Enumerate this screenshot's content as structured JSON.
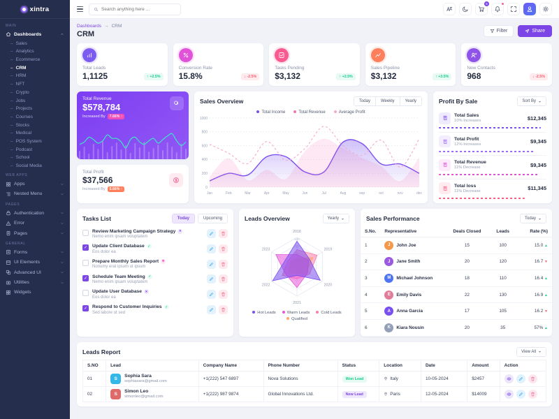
{
  "brand": {
    "name": "xintra"
  },
  "topbar": {
    "search_placeholder": "Search anything here ...",
    "icons": [
      "translate-icon",
      "moon-icon",
      "cart-icon",
      "bell-icon",
      "fullscreen-icon",
      "avatar",
      "gear-icon"
    ],
    "cart_badge": "5"
  },
  "sidebar": {
    "sections": [
      {
        "label": "Main",
        "items": [
          {
            "label": "Dashboards",
            "icon": "home-icon",
            "chevron": "up",
            "active": true
          }
        ]
      },
      {
        "label": "Web Apps",
        "items": [
          {
            "label": "Apps",
            "icon": "apps-icon",
            "chevron": "down"
          },
          {
            "label": "Nested Menu",
            "icon": "nested-menu-icon",
            "chevron": "down"
          }
        ]
      },
      {
        "label": "Pages",
        "items": [
          {
            "label": "Authentication",
            "icon": "lock-icon",
            "chevron": "down"
          },
          {
            "label": "Error",
            "icon": "warning-icon",
            "chevron": "down"
          },
          {
            "label": "Pages",
            "icon": "pages-icon",
            "chevron": "down"
          }
        ]
      },
      {
        "label": "General",
        "items": [
          {
            "label": "Forms",
            "icon": "forms-icon",
            "chevron": "down"
          },
          {
            "label": "UI Elements",
            "icon": "ui-elements-icon",
            "chevron": "down"
          },
          {
            "label": "Advanced UI",
            "icon": "advanced-ui-icon",
            "chevron": "down"
          },
          {
            "label": "Utilities",
            "icon": "utilities-icon",
            "chevron": "down"
          },
          {
            "label": "Widgets",
            "icon": "widgets-icon"
          }
        ]
      }
    ],
    "dashboard_children": [
      "Sales",
      "Analytics",
      "Ecommerce",
      "CRM",
      "HRM",
      "NFT",
      "Crypto",
      "Jobs",
      "Projects",
      "Courses",
      "Stocks",
      "Medical",
      "POS System",
      "Podcast",
      "School",
      "Social Media"
    ],
    "active_child": "CRM"
  },
  "breadcrumb": {
    "parent": "Dashboards",
    "separator": "→",
    "current": "CRM"
  },
  "page": {
    "title": "CRM",
    "filter_label": "Filter",
    "share_label": "Share"
  },
  "stats": [
    {
      "label": "Total Leads",
      "value": "1,1125",
      "delta": "+2.5%",
      "dir": "up",
      "icon": "leads-icon",
      "color": "#7c5cf0"
    },
    {
      "label": "Conversion Rate",
      "value": "15.8%",
      "delta": "-2.5%",
      "dir": "down",
      "icon": "percent-icon",
      "color": "#e052d8"
    },
    {
      "label": "Tasks Pending",
      "value": "$3,132",
      "delta": "+2.5%",
      "dir": "up",
      "icon": "task-icon",
      "color": "#fa5a8f"
    },
    {
      "label": "Sales Pipeline",
      "value": "$3,132",
      "delta": "+3.5%",
      "dir": "up",
      "icon": "pipeline-icon",
      "color": "#fd7f5b"
    },
    {
      "label": "New Contacts",
      "value": "968",
      "delta": "-2.5%",
      "dir": "down",
      "icon": "contact-icon",
      "color": "#8e54e9"
    }
  ],
  "revenue_card": {
    "label": "Total Revenue",
    "value": "$578,784",
    "increase_label": "Increased By",
    "badge": "7.66% ↑"
  },
  "profit_card": {
    "label": "Total Profit",
    "value": "$37,566",
    "increase_label": "Increased By",
    "badge": "5.66% ↑"
  },
  "sales_overview": {
    "title": "Sales Overview",
    "buttons": [
      "Today",
      "Weekly",
      "Yearly"
    ]
  },
  "profit_by_sale": {
    "title": "Profit By Sale",
    "sort_label": "Sort By",
    "items": [
      {
        "label": "Total Sales",
        "sub": "10% Increases",
        "value": "$12,345",
        "color": "#7a4ff0",
        "progress": 95
      },
      {
        "label": "Total Profit",
        "sub": "12% Increases",
        "value": "$9,345",
        "color": "#9e6bfa",
        "progress": 88
      },
      {
        "label": "Total Revenue",
        "sub": "11% Decrease",
        "value": "$9,345",
        "color": "#e052d8",
        "progress": 92
      },
      {
        "label": "Total loss",
        "sub": "11% Decrease",
        "value": "$11,345",
        "color": "#fb5d80",
        "progress": 80
      }
    ]
  },
  "tasks": {
    "title": "Tasks List",
    "tabs": [
      "Today",
      "Upcoming"
    ],
    "active_tab": "Today",
    "items": [
      {
        "title": "Review Marketing Campaign Strategy",
        "sub": "Nemo enim ipsam voluptatem",
        "checked": false,
        "tag": "purple"
      },
      {
        "title": "Update Client Database",
        "sub": "Eos dolor ea",
        "checked": true,
        "tag": "green"
      },
      {
        "title": "Prepare Monthly Sales Report",
        "sub": "Nonumy erat ipsum ut ipsum",
        "checked": false,
        "tag": "pink"
      },
      {
        "title": "Schedule Team Meeting",
        "sub": "Nemo enim ipsam voluptatem",
        "checked": true,
        "tag": "green"
      },
      {
        "title": "Update User Database",
        "sub": "Eos dolor ea",
        "checked": false,
        "tag": "purple"
      },
      {
        "title": "Respond to Customer Inquiries",
        "sub": "Sed labore ut sed",
        "checked": true,
        "tag": "green"
      }
    ]
  },
  "leads_overview": {
    "title": "Leads Overview",
    "period": "Yearly"
  },
  "sales_performance": {
    "title": "Sales Performance",
    "period": "Today",
    "columns": [
      "S.No.",
      "Representative",
      "Deals Closed",
      "Leads",
      "Rate (%)"
    ],
    "rows": [
      {
        "sno": "1",
        "name": "John Joe",
        "deals": "15",
        "leads": "100",
        "rate": "15.0",
        "dir": "up"
      },
      {
        "sno": "2",
        "name": "Jane Smith",
        "deals": "20",
        "leads": "120",
        "rate": "16.7",
        "dir": "down"
      },
      {
        "sno": "3",
        "name": "Michael Johnson",
        "deals": "18",
        "leads": "110",
        "rate": "16.4",
        "dir": "up"
      },
      {
        "sno": "4",
        "name": "Emily Davis",
        "deals": "22",
        "leads": "130",
        "rate": "16.9",
        "dir": "up"
      },
      {
        "sno": "5",
        "name": "Anna Garcia",
        "deals": "17",
        "leads": "105",
        "rate": "16.2",
        "dir": "down"
      },
      {
        "sno": "6",
        "name": "Kiara Nousin",
        "deals": "20",
        "leads": "35",
        "rate": "57%",
        "dir": "up"
      }
    ]
  },
  "leads_report": {
    "title": "Leads Report",
    "view_all": "View All",
    "columns": [
      "S.NO",
      "Lead",
      "Company Name",
      "Phone Number",
      "Status",
      "Location",
      "Date",
      "Amount",
      "Action"
    ],
    "rows": [
      {
        "sno": "01",
        "name": "Sophia Sara",
        "email": "sophiasara@gmail.com",
        "company_name_cell": "+1(222) 547 6897",
        "phone_number_cell": "Nova Solutions",
        "status": "Won Lead",
        "status_type": "success",
        "location": "Italy",
        "date": "10-05-2024",
        "amount": "$2457"
      },
      {
        "sno": "02",
        "name": "Simon Leo",
        "email": "simonleo@gmail.com",
        "company_name_cell": "+1(222) 987 9874",
        "phone_number_cell": "Global Innovations Ltd.",
        "status": "New Lead",
        "status_type": "purple",
        "location": "Paris",
        "date": "12-05-2024",
        "amount": "$14009"
      }
    ]
  },
  "chart_data": [
    {
      "type": "line",
      "title": "Sales Overview",
      "x": [
        "Jan",
        "Feb",
        "Mar",
        "Apr",
        "May",
        "Jun",
        "Jul",
        "Aug",
        "sep",
        "oct",
        "nov",
        "dec"
      ],
      "ylim": [
        0,
        1000
      ],
      "yticks": [
        0,
        200,
        400,
        600,
        800,
        1000
      ],
      "grid": true,
      "legend_position": "top",
      "series": [
        {
          "name": "Total Income",
          "color": "#7a4ff0",
          "style": "line-area",
          "values": [
            90,
            200,
            175,
            440,
            440,
            220,
            220,
            650,
            630,
            335,
            335,
            200
          ]
        },
        {
          "name": "Total Revenue",
          "color": "#f472b6",
          "style": "area",
          "values": [
            150,
            420,
            100,
            250,
            120,
            520,
            700,
            560,
            420,
            300,
            90,
            430
          ]
        },
        {
          "name": "Average Profit",
          "color": "#f9a8c9",
          "style": "dashed-line",
          "values": [
            620,
            490,
            340,
            660,
            390,
            560,
            880,
            600,
            460,
            680,
            290,
            700
          ]
        }
      ]
    },
    {
      "type": "radar",
      "title": "Leads Overview",
      "categories": [
        "2018",
        "2019",
        "2020",
        "2021",
        "2022",
        "2023"
      ],
      "rlim": [
        0,
        120
      ],
      "rticks": [
        0,
        30,
        60,
        90,
        120
      ],
      "legend_position": "bottom",
      "series": [
        {
          "name": "Hot Leads",
          "color": "#7a4ff0",
          "values": [
            105,
            60,
            110,
            35,
            115,
            55
          ]
        },
        {
          "name": "Warm Leads",
          "color": "#e856d8",
          "values": [
            50,
            55,
            50,
            85,
            55,
            100
          ]
        },
        {
          "name": "Cold Leads",
          "color": "#fd7ea8",
          "values": [
            70,
            95,
            60,
            50,
            70,
            45
          ]
        },
        {
          "name": "Qualified",
          "color": "#ffa66b",
          "values": [
            35,
            75,
            45,
            28,
            40,
            32
          ]
        }
      ]
    },
    {
      "type": "line",
      "title": "Total Revenue sparkline",
      "series": [
        {
          "name": "revenue-line",
          "color": "#3ee6c4",
          "values": [
            18,
            22,
            30,
            26,
            20,
            24,
            34,
            28,
            28,
            22,
            12,
            26,
            30,
            22,
            18,
            24,
            28,
            20,
            26,
            32,
            36,
            24,
            16,
            22
          ]
        },
        {
          "name": "revenue-bars",
          "color": "#ffffff",
          "values": [
            12,
            18,
            8,
            22,
            15,
            26,
            10,
            19,
            24,
            14,
            20,
            9,
            23,
            17,
            25,
            11,
            16,
            21,
            13,
            24,
            18,
            10,
            22,
            15
          ]
        }
      ]
    }
  ]
}
